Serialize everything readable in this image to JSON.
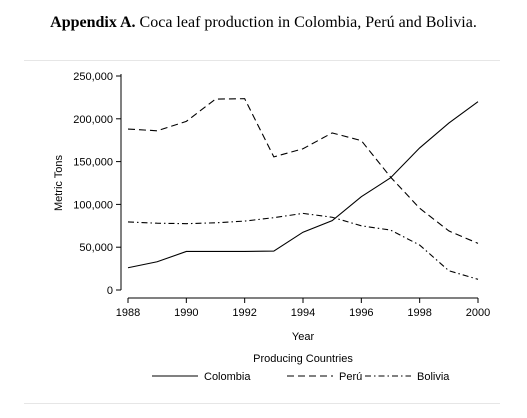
{
  "caption": {
    "label": "Appendix A.",
    "text": "Coca leaf production in Colombia, Perú and Bolivia."
  },
  "chart_data": {
    "type": "line",
    "title": "",
    "xlabel": "Year",
    "ylabel": "Metric Tons",
    "x": [
      1988,
      1989,
      1990,
      1991,
      1992,
      1993,
      1994,
      1995,
      1996,
      1997,
      1998,
      1999,
      2000
    ],
    "xlim": [
      1988,
      2000
    ],
    "ylim": [
      0,
      250000
    ],
    "x_ticks": [
      1988,
      1990,
      1992,
      1994,
      1996,
      1998,
      2000
    ],
    "x_tick_labels": [
      "1988",
      "1990",
      "1992",
      "1994",
      "1996",
      "1998",
      "2000"
    ],
    "y_ticks": [
      0,
      50000,
      100000,
      150000,
      200000,
      250000
    ],
    "y_tick_labels": [
      "0",
      "50,000",
      "100,000",
      "150,000",
      "200,000",
      "250,000"
    ],
    "grid": false,
    "legend_title": "Producing Countries",
    "legend_position": "bottom",
    "series": [
      {
        "name": "Colombia",
        "style": "solid",
        "values": [
          26000,
          33000,
          45000,
          45000,
          45000,
          45500,
          67500,
          81000,
          109000,
          131000,
          166000,
          195000,
          220000
        ]
      },
      {
        "name": "Perú",
        "style": "dashed",
        "values": [
          188000,
          186000,
          197000,
          223000,
          223500,
          155500,
          165000,
          183500,
          174500,
          132000,
          95500,
          69000,
          54500
        ]
      },
      {
        "name": "Bolivia",
        "style": "dashdot",
        "values": [
          79500,
          78000,
          77500,
          78500,
          80500,
          84500,
          89500,
          85000,
          75000,
          70000,
          52500,
          22500,
          12500
        ]
      }
    ]
  }
}
